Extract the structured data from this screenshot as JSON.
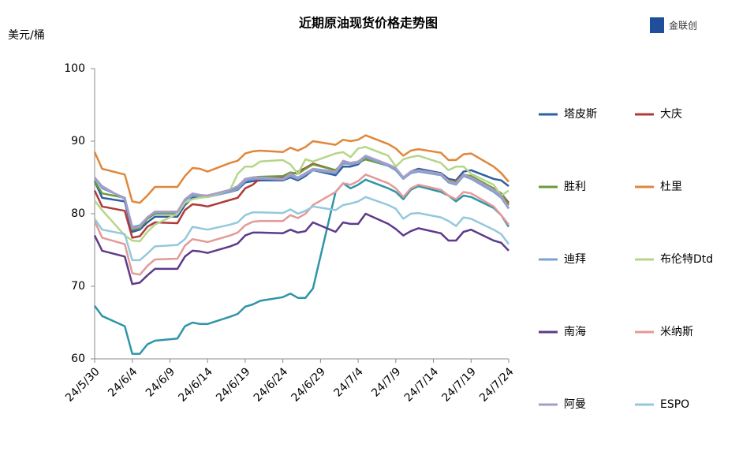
{
  "chart_data": {
    "type": "line",
    "title": "近期原油现货价格走势图",
    "y_unit": "美元/桶",
    "logo": "金联创",
    "x": [
      0,
      1,
      4,
      5,
      6,
      7,
      8,
      11,
      12,
      13,
      14,
      15,
      18,
      19,
      20,
      21,
      22,
      25,
      26,
      27,
      28,
      29,
      32,
      33,
      34,
      35,
      36,
      39,
      40,
      41,
      42,
      43,
      46,
      47,
      48,
      49,
      50,
      53,
      54,
      55
    ],
    "xlim": [
      0,
      55
    ],
    "xticks": [
      {
        "value": 0,
        "label": "24/5/30"
      },
      {
        "value": 5,
        "label": "24/6/4"
      },
      {
        "value": 10,
        "label": "24/6/9"
      },
      {
        "value": 15,
        "label": "24/6/14"
      },
      {
        "value": 20,
        "label": "24/6/19"
      },
      {
        "value": 25,
        "label": "24/6/24"
      },
      {
        "value": 30,
        "label": "24/6/29"
      },
      {
        "value": 35,
        "label": "24/7/4"
      },
      {
        "value": 40,
        "label": "24/7/9"
      },
      {
        "value": 45,
        "label": "24/7/14"
      },
      {
        "value": 50,
        "label": "24/7/19"
      },
      {
        "value": 55,
        "label": "24/7/24"
      }
    ],
    "ylim": [
      60,
      100
    ],
    "yticks": [
      60,
      70,
      80,
      90,
      100
    ],
    "grid": false,
    "series": [
      {
        "name": "塔皮斯",
        "color": "#2f5f9f",
        "values": [
          84.5,
          82.2,
          81.7,
          77.5,
          77.8,
          78.8,
          79.6,
          79.6,
          81.2,
          82.2,
          82.3,
          82.4,
          83.0,
          83.3,
          84.3,
          84.5,
          84.6,
          84.6,
          85.0,
          84.6,
          85.2,
          86.0,
          85.3,
          86.5,
          86.5,
          86.8,
          87.8,
          86.6,
          86.2,
          85.0,
          85.8,
          86.2,
          85.6,
          84.8,
          84.6,
          85.8,
          86.0,
          84.8,
          84.6,
          83.8
        ]
      },
      {
        "name": "大庆",
        "color": "#b03a3a",
        "values": [
          83.2,
          81.0,
          80.4,
          76.7,
          76.9,
          78.2,
          78.8,
          78.7,
          80.5,
          81.3,
          81.2,
          81.0,
          81.9,
          82.2,
          83.5,
          84.0,
          84.9,
          85.0,
          85.3,
          85.8,
          86.3,
          86.9,
          86.0,
          87.0,
          87.0,
          87.2,
          87.5,
          86.7,
          86.0,
          84.9,
          85.6,
          86.0,
          85.4,
          84.6,
          84.5,
          85.4,
          85.0,
          83.5,
          82.8,
          81.5
        ]
      },
      {
        "name": "胜利",
        "color": "#6a9a3a",
        "values": [
          84.5,
          82.8,
          82.2,
          77.8,
          78.0,
          79.3,
          80.0,
          80.0,
          81.8,
          82.6,
          82.5,
          82.5,
          83.2,
          83.5,
          84.8,
          85.0,
          85.1,
          85.2,
          85.7,
          85.5,
          86.2,
          86.8,
          86.0,
          86.9,
          86.9,
          87.0,
          87.5,
          86.6,
          86.0,
          84.9,
          85.6,
          86.0,
          85.4,
          84.6,
          84.4,
          85.4,
          85.2,
          83.5,
          82.8,
          81.2
        ]
      },
      {
        "name": "杜里",
        "color": "#e0873a",
        "values": [
          88.5,
          86.2,
          85.4,
          81.7,
          81.5,
          82.5,
          83.7,
          83.7,
          85.2,
          86.3,
          86.2,
          85.8,
          87.0,
          87.3,
          88.3,
          88.6,
          88.7,
          88.5,
          89.1,
          88.7,
          89.2,
          90.0,
          89.5,
          90.2,
          90.0,
          90.2,
          90.8,
          89.6,
          89.0,
          88.0,
          88.7,
          88.9,
          88.4,
          87.4,
          87.4,
          88.2,
          88.3,
          86.5,
          85.6,
          84.4
        ]
      },
      {
        "name": "迪拜",
        "color": "#7ea2cf",
        "values": [
          85.0,
          83.5,
          82.2,
          78.2,
          78.4,
          79.5,
          80.2,
          80.2,
          81.8,
          82.5,
          82.4,
          82.3,
          83.0,
          83.4,
          84.5,
          84.8,
          84.8,
          84.7,
          85.2,
          84.8,
          85.4,
          86.0,
          85.6,
          87.0,
          86.8,
          87.0,
          87.8,
          86.6,
          86.0,
          84.8,
          85.6,
          85.8,
          85.3,
          84.3,
          84.0,
          85.2,
          84.8,
          83.0,
          82.2,
          80.7
        ]
      },
      {
        "name": "布伦特Dtd",
        "color": "#b5d68a",
        "values": [
          81.8,
          80.5,
          77.0,
          76.3,
          76.2,
          77.5,
          78.5,
          80.0,
          81.5,
          82.0,
          82.2,
          82.3,
          83.3,
          85.5,
          86.5,
          86.5,
          87.2,
          87.4,
          86.8,
          85.5,
          87.5,
          87.2,
          88.3,
          88.5,
          87.8,
          89.0,
          89.2,
          88.0,
          86.5,
          87.5,
          87.8,
          88.0,
          87.0,
          86.0,
          86.5,
          86.5,
          85.5,
          84.0,
          82.5,
          83.2
        ]
      },
      {
        "name": "南海",
        "color": "#5e3a8a",
        "values": [
          77.0,
          74.9,
          74.1,
          70.3,
          70.5,
          71.5,
          72.4,
          72.4,
          74.1,
          74.9,
          74.8,
          74.6,
          75.5,
          75.9,
          77.0,
          77.4,
          77.4,
          77.3,
          77.8,
          77.4,
          77.6,
          78.8,
          77.5,
          78.8,
          78.6,
          78.6,
          80.0,
          78.6,
          77.9,
          77.0,
          77.6,
          78.0,
          77.3,
          76.3,
          76.3,
          77.5,
          77.8,
          76.3,
          76.0,
          74.9
        ]
      },
      {
        "name": "米纳斯",
        "color": "#e39a98",
        "values": [
          79.0,
          76.7,
          75.8,
          71.8,
          71.6,
          72.8,
          73.7,
          73.8,
          75.6,
          76.5,
          76.3,
          76.1,
          77.0,
          77.4,
          78.4,
          78.9,
          79.0,
          79.0,
          79.8,
          79.4,
          80.0,
          81.2,
          83.0,
          84.2,
          84.0,
          84.5,
          85.4,
          84.2,
          83.5,
          82.3,
          83.5,
          84.0,
          83.3,
          82.5,
          82.0,
          83.0,
          82.8,
          81.0,
          79.8,
          78.5
        ]
      },
      {
        "name": "阿曼",
        "color": "#a99cc9",
        "values": [
          85.0,
          83.8,
          82.0,
          78.0,
          78.2,
          79.5,
          80.3,
          80.3,
          82.0,
          82.8,
          82.6,
          82.5,
          83.3,
          83.8,
          84.8,
          85.0,
          85.0,
          84.8,
          85.5,
          85.0,
          85.6,
          86.2,
          85.8,
          87.3,
          87.0,
          87.2,
          88.0,
          86.8,
          86.3,
          85.0,
          85.8,
          86.0,
          85.5,
          84.5,
          84.2,
          85.4,
          85.0,
          83.3,
          82.5,
          80.8
        ]
      },
      {
        "name": "ESPO",
        "color": "#94c8dc",
        "values": [
          79.3,
          77.8,
          77.2,
          73.6,
          73.6,
          74.5,
          75.5,
          75.7,
          76.5,
          78.2,
          78.0,
          77.8,
          78.5,
          78.8,
          79.8,
          80.2,
          80.2,
          80.1,
          80.6,
          80.0,
          80.4,
          81.0,
          80.5,
          81.2,
          81.4,
          81.7,
          82.3,
          81.2,
          80.7,
          79.3,
          80.0,
          80.1,
          79.5,
          79.0,
          78.3,
          79.5,
          79.3,
          77.8,
          77.2,
          75.8
        ]
      },
      {
        "color": "#2f95a8",
        "values": [
          67.3,
          65.9,
          64.5,
          60.7,
          60.7,
          62.0,
          62.5,
          62.8,
          64.5,
          65.0,
          64.8,
          64.8,
          65.8,
          66.2,
          67.2,
          67.5,
          68.0,
          68.5,
          69.0,
          68.4,
          68.4,
          69.7,
          83.0,
          84.2,
          83.5,
          84.0,
          84.7,
          83.5,
          83.0,
          82.0,
          83.3,
          83.8,
          83.0,
          82.5,
          81.7,
          82.5,
          82.3,
          80.8,
          79.8,
          78.2
        ]
      }
    ]
  }
}
